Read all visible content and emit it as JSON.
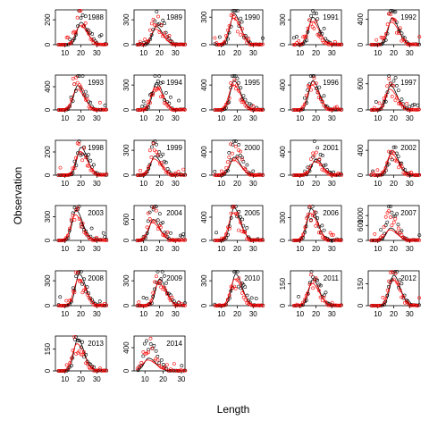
{
  "chart_data": {
    "type": "line",
    "xlabel": "Length",
    "ylabel": "Observation",
    "panels": [
      {
        "year": "1988",
        "xticks": [
          10,
          20,
          30
        ],
        "yticks": [
          0,
          200
        ],
        "ymax": 280,
        "peak": 20,
        "predPeak": 180,
        "obsPeak": 260
      },
      {
        "year": "1989",
        "xticks": [
          10,
          20,
          30
        ],
        "yticks": [
          0,
          300
        ],
        "ymax": 420,
        "peak": 18,
        "predPeak": 220,
        "obsPeak": 380
      },
      {
        "year": "1990",
        "xticks": [
          10,
          20,
          30
        ],
        "yticks": [
          0,
          300
        ],
        "ymax": 380,
        "peak": 18,
        "predPeak": 340,
        "obsPeak": 360
      },
      {
        "year": "1991",
        "xticks": [
          10,
          20,
          30
        ],
        "yticks": [
          0,
          300
        ],
        "ymax": 420,
        "peak": 18,
        "predPeak": 330,
        "obsPeak": 330
      },
      {
        "year": "1992",
        "xticks": [
          10,
          20,
          30
        ],
        "yticks": [
          0,
          400
        ],
        "ymax": 550,
        "peak": 19,
        "predPeak": 420,
        "obsPeak": 520
      },
      {
        "year": "1993",
        "xticks": [
          10,
          20,
          30
        ],
        "yticks": [
          0,
          400
        ],
        "ymax": 600,
        "peak": 18,
        "predPeak": 420,
        "obsPeak": 560
      },
      {
        "year": "1994",
        "xticks": [
          10,
          20,
          30
        ],
        "yticks": [
          0,
          300
        ],
        "ymax": 420,
        "peak": 18,
        "predPeak": 330,
        "obsPeak": 390
      },
      {
        "year": "1995",
        "xticks": [
          10,
          20,
          30
        ],
        "yticks": [
          0,
          400
        ],
        "ymax": 560,
        "peak": 18,
        "predPeak": 470,
        "obsPeak": 480
      },
      {
        "year": "1996",
        "xticks": [
          10,
          20,
          30
        ],
        "yticks": [
          0,
          400
        ],
        "ymax": 560,
        "peak": 18,
        "predPeak": 470,
        "obsPeak": 540
      },
      {
        "year": "1997",
        "xticks": [
          10,
          20,
          30
        ],
        "yticks": [
          0,
          600
        ],
        "ymax": 800,
        "peak": 18,
        "predPeak": 560,
        "obsPeak": 700
      },
      {
        "year": "1998",
        "xticks": [
          10,
          20,
          30
        ],
        "yticks": [
          0,
          200
        ],
        "ymax": 300,
        "peak": 20,
        "predPeak": 240,
        "obsPeak": 270
      },
      {
        "year": "1999",
        "xticks": [
          10,
          20,
          30
        ],
        "yticks": [
          0,
          300
        ],
        "ymax": 420,
        "peak": 17,
        "predPeak": 230,
        "obsPeak": 390
      },
      {
        "year": "2000",
        "xticks": [
          10,
          20,
          30
        ],
        "yticks": [
          0,
          400
        ],
        "ymax": 600,
        "peak": 18,
        "predPeak": 310,
        "obsPeak": 560
      },
      {
        "year": "2001",
        "xticks": [
          10,
          20,
          30
        ],
        "yticks": [
          0,
          400
        ],
        "ymax": 600,
        "peak": 20,
        "predPeak": 280,
        "obsPeak": 400
      },
      {
        "year": "2002",
        "xticks": [
          10,
          20,
          30
        ],
        "yticks": [
          0,
          400
        ],
        "ymax": 560,
        "peak": 19,
        "predPeak": 400,
        "obsPeak": 380
      },
      {
        "year": "2003",
        "xticks": [
          10,
          20,
          30
        ],
        "yticks": [
          0,
          300
        ],
        "ymax": 440,
        "peak": 17,
        "predPeak": 380,
        "obsPeak": 420
      },
      {
        "year": "2004",
        "xticks": [
          10,
          20,
          30
        ],
        "yticks": [
          0,
          600
        ],
        "ymax": 1000,
        "peak": 16,
        "predPeak": 600,
        "obsPeak": 960
      },
      {
        "year": "2005",
        "xticks": [
          10,
          20,
          30
        ],
        "yticks": [
          0,
          400
        ],
        "ymax": 600,
        "peak": 18,
        "predPeak": 560,
        "obsPeak": 560
      },
      {
        "year": "2006",
        "xticks": [
          10,
          20,
          30
        ],
        "yticks": [
          0,
          300
        ],
        "ymax": 460,
        "peak": 17,
        "predPeak": 420,
        "obsPeak": 440
      },
      {
        "year": "2007",
        "xticks": [
          10,
          20,
          30
        ],
        "yticks": [
          0,
          600,
          1000
        ],
        "ymax": 1400,
        "peak": 18,
        "predPeak": 500,
        "obsPeak": 1300
      },
      {
        "year": "2008",
        "xticks": [
          10,
          20,
          30
        ],
        "yticks": [
          0,
          300
        ],
        "ymax": 420,
        "peak": 19,
        "predPeak": 380,
        "obsPeak": 400
      },
      {
        "year": "2009",
        "xticks": [
          10,
          20,
          30
        ],
        "yticks": [
          0,
          300
        ],
        "ymax": 420,
        "peak": 20,
        "predPeak": 320,
        "obsPeak": 380
      },
      {
        "year": "2010",
        "xticks": [
          10,
          20,
          30
        ],
        "yticks": [
          0,
          300
        ],
        "ymax": 420,
        "peak": 19,
        "predPeak": 380,
        "obsPeak": 400
      },
      {
        "year": "2011",
        "xticks": [
          10,
          20,
          30
        ],
        "yticks": [
          0,
          150
        ],
        "ymax": 240,
        "peak": 18,
        "predPeak": 180,
        "obsPeak": 220
      },
      {
        "year": "2012",
        "xticks": [
          10,
          20,
          30
        ],
        "yticks": [
          0,
          150
        ],
        "ymax": 240,
        "peak": 20,
        "predPeak": 210,
        "obsPeak": 230
      },
      {
        "year": "2013",
        "xticks": [
          10,
          20,
          30
        ],
        "yticks": [
          0,
          150
        ],
        "ymax": 240,
        "peak": 18,
        "predPeak": 220,
        "obsPeak": 230
      },
      {
        "year": "2014",
        "xticks": [
          10,
          20,
          30
        ],
        "yticks": [
          0,
          400
        ],
        "ymax": 600,
        "peak": 12,
        "predPeak": 220,
        "obsPeak": 500
      }
    ],
    "colors": {
      "observed_a": "#000000",
      "observed_b": "#ff0000",
      "predicted_a": "#000000",
      "predicted_b": "#ff0000"
    }
  }
}
